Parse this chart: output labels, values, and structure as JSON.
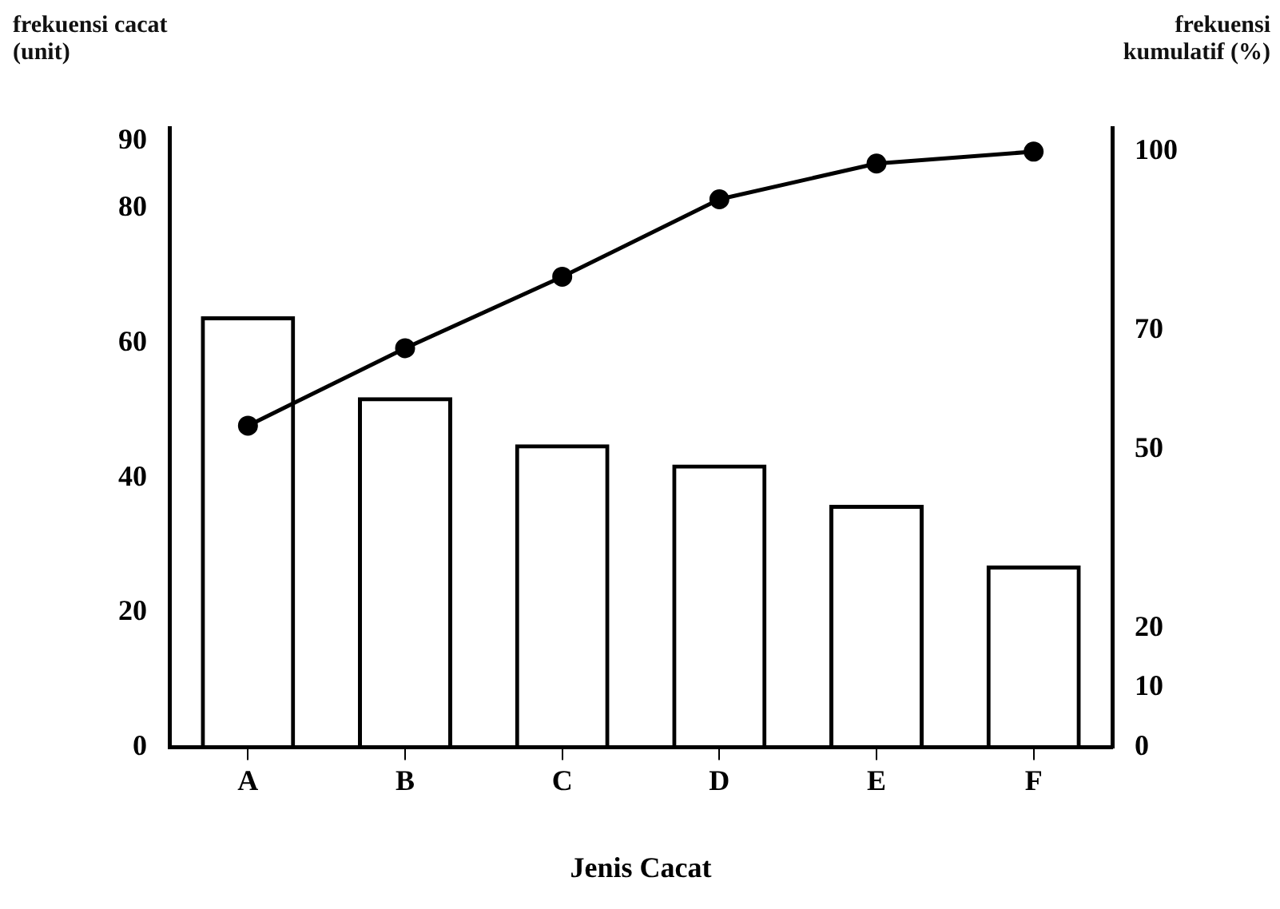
{
  "chart_data": {
    "type": "bar",
    "xlabel": "Jenis Cacat",
    "ylabel": "frekuensi cacat (unit)",
    "y2label": "frekuensi kumulatif (%)",
    "categories": [
      "A",
      "B",
      "C",
      "D",
      "E",
      "F"
    ],
    "series": [
      {
        "color": "#000000",
        "values": [
          64,
          52,
          45,
          42,
          36,
          27
        ]
      },
      {
        "type": "line",
        "axis": "y2",
        "color": "#000000",
        "marker": "circle",
        "line_style": "solid",
        "values": [
          54,
          67,
          79,
          92,
          98,
          100
        ]
      }
    ],
    "ylim": [
      0,
      92
    ],
    "yticks": [
      0,
      20,
      40,
      60,
      80,
      90
    ],
    "y2lim": [
      0,
      104
    ],
    "y2ticks": [
      0,
      10,
      20,
      50,
      70,
      100
    ],
    "grid": false,
    "legend": false
  }
}
